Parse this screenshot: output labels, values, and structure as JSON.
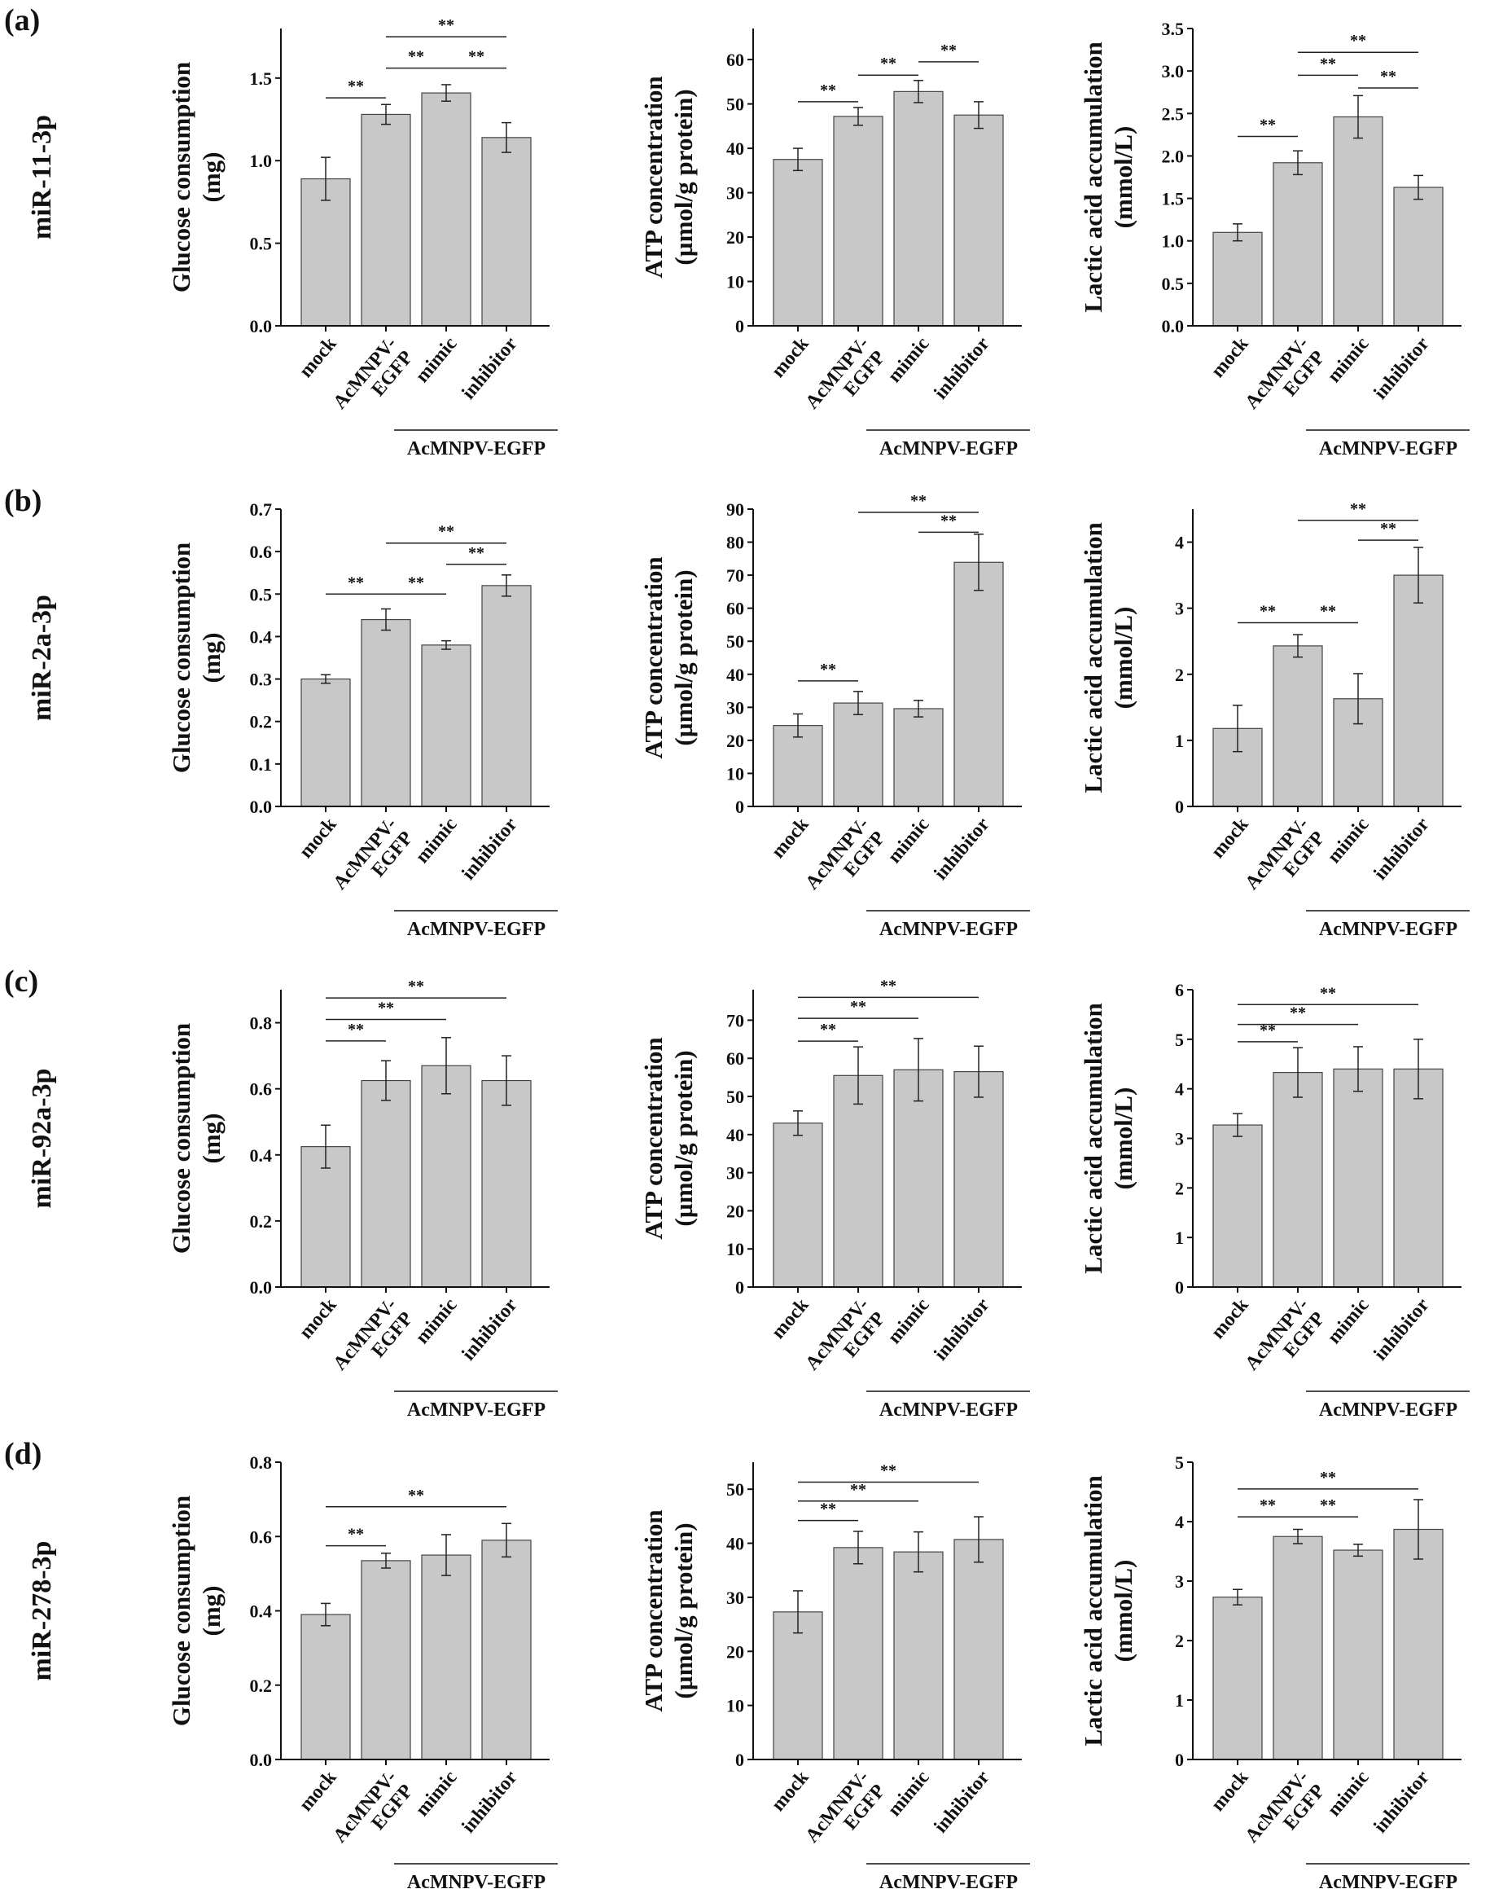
{
  "figure": {
    "group_label": "AcMNPV-EGFP",
    "colors": {
      "bar": "#c8c8c8",
      "bar_stroke": "#444444",
      "axis": "#111111"
    }
  },
  "chart_data": [
    {
      "panel": "(a)",
      "row_label": "miR-11-3p",
      "type": "bar",
      "ylabel": [
        "Glucose consumption",
        "(mg)"
      ],
      "categories": [
        "mock",
        "AcMNPV-EGFP",
        "mimic",
        "inhibitor"
      ],
      "values": [
        0.89,
        1.28,
        1.41,
        1.14
      ],
      "errors": [
        0.13,
        0.06,
        0.05,
        0.09
      ],
      "ylim": [
        0,
        1.8
      ],
      "yticks": [
        0.0,
        0.5,
        1.0,
        1.5
      ],
      "ytick_labels": [
        "0.0",
        "0.5",
        "1.0",
        "1.5"
      ],
      "significance": [
        {
          "from": 0,
          "to": 1,
          "y": 1.38,
          "label": "**"
        },
        {
          "from": 1,
          "to": 3,
          "y": 1.75,
          "label": "**"
        },
        {
          "from": 1,
          "to": 2,
          "y": 1.56,
          "label": "**"
        },
        {
          "from": 2,
          "to": 3,
          "y": 1.56,
          "label": "**"
        }
      ]
    },
    {
      "panel": "",
      "row_label": "",
      "type": "bar",
      "ylabel": [
        "ATP concentration",
        "(µmol/g protein)"
      ],
      "categories": [
        "mock",
        "AcMNPV-EGFP",
        "mimic",
        "inhibitor"
      ],
      "values": [
        37.5,
        47.2,
        52.8,
        47.5
      ],
      "errors": [
        2.5,
        2.0,
        2.5,
        3.0
      ],
      "ylim": [
        0,
        67
      ],
      "yticks": [
        0,
        10,
        20,
        30,
        40,
        50,
        60
      ],
      "ytick_labels": [
        "0",
        "10",
        "20",
        "30",
        "40",
        "50",
        "60"
      ],
      "significance": [
        {
          "from": 0,
          "to": 1,
          "y": 50.5,
          "label": "**"
        },
        {
          "from": 1,
          "to": 2,
          "y": 56.5,
          "label": "**"
        },
        {
          "from": 2,
          "to": 3,
          "y": 59.5,
          "label": "**"
        }
      ]
    },
    {
      "panel": "",
      "row_label": "",
      "type": "bar",
      "ylabel": [
        "Lactic acid accumulation",
        "(mmol/L)"
      ],
      "categories": [
        "mock",
        "AcMNPV-EGFP",
        "mimic",
        "inhibitor"
      ],
      "values": [
        1.1,
        1.92,
        2.46,
        1.63
      ],
      "errors": [
        0.1,
        0.14,
        0.25,
        0.14
      ],
      "ylim": [
        0,
        3.5
      ],
      "yticks": [
        0.0,
        0.5,
        1.0,
        1.5,
        2.0,
        2.5,
        3.0,
        3.5
      ],
      "ytick_labels": [
        "0.0",
        "0.5",
        "1.0",
        "1.5",
        "2.0",
        "2.5",
        "3.0",
        "3.5"
      ],
      "significance": [
        {
          "from": 0,
          "to": 1,
          "y": 2.23,
          "label": "**"
        },
        {
          "from": 1,
          "to": 3,
          "y": 3.22,
          "label": "**"
        },
        {
          "from": 1,
          "to": 2,
          "y": 2.95,
          "label": "**"
        },
        {
          "from": 2,
          "to": 3,
          "y": 2.8,
          "label": "**"
        }
      ]
    },
    {
      "panel": "(b)",
      "row_label": "miR-2a-3p",
      "type": "bar",
      "ylabel": [
        "Glucose consumption",
        "(mg)"
      ],
      "categories": [
        "mock",
        "AcMNPV-EGFP",
        "mimic",
        "inhibitor"
      ],
      "values": [
        0.3,
        0.44,
        0.38,
        0.52
      ],
      "errors": [
        0.01,
        0.025,
        0.01,
        0.025
      ],
      "ylim": [
        0,
        0.7
      ],
      "yticks": [
        0.0,
        0.1,
        0.2,
        0.3,
        0.4,
        0.5,
        0.6,
        0.7
      ],
      "ytick_labels": [
        "0.0",
        "0.1",
        "0.2",
        "0.3",
        "0.4",
        "0.5",
        "0.6",
        "0.7"
      ],
      "significance": [
        {
          "from": 0,
          "to": 1,
          "y": 0.5,
          "label": "**"
        },
        {
          "from": 1,
          "to": 3,
          "y": 0.62,
          "label": "**"
        },
        {
          "from": 1,
          "to": 2,
          "y": 0.5,
          "label": "**"
        },
        {
          "from": 2,
          "to": 3,
          "y": 0.57,
          "label": "**"
        }
      ]
    },
    {
      "panel": "",
      "row_label": "",
      "type": "bar",
      "ylabel": [
        "ATP concentration",
        "(µmol/g protein)"
      ],
      "categories": [
        "mock",
        "AcMNPV-EGFP",
        "mimic",
        "inhibitor"
      ],
      "values": [
        24.5,
        31.3,
        29.6,
        73.9
      ],
      "errors": [
        3.5,
        3.5,
        2.5,
        8.5
      ],
      "ylim": [
        0,
        90
      ],
      "yticks": [
        0,
        10,
        20,
        30,
        40,
        50,
        60,
        70,
        80,
        90
      ],
      "ytick_labels": [
        "0",
        "10",
        "20",
        "30",
        "40",
        "50",
        "60",
        "70",
        "80",
        "90"
      ],
      "significance": [
        {
          "from": 0,
          "to": 1,
          "y": 38,
          "label": "**"
        },
        {
          "from": 1,
          "to": 3,
          "y": 89,
          "label": "**"
        },
        {
          "from": 2,
          "to": 3,
          "y": 83,
          "label": "**"
        }
      ]
    },
    {
      "panel": "",
      "row_label": "",
      "type": "bar",
      "ylabel": [
        "Lactic acid accumulation",
        "(mmol/L)"
      ],
      "categories": [
        "mock",
        "AcMNPV-EGFP",
        "mimic",
        "inhibitor"
      ],
      "values": [
        1.18,
        2.43,
        1.63,
        3.5
      ],
      "errors": [
        0.35,
        0.17,
        0.38,
        0.42
      ],
      "ylim": [
        0,
        4.5
      ],
      "yticks": [
        0,
        1,
        2,
        3,
        4
      ],
      "ytick_labels": [
        "0",
        "1",
        "2",
        "3",
        "4"
      ],
      "significance": [
        {
          "from": 0,
          "to": 1,
          "y": 2.78,
          "label": "**"
        },
        {
          "from": 1,
          "to": 3,
          "y": 4.33,
          "label": "**"
        },
        {
          "from": 1,
          "to": 2,
          "y": 2.78,
          "label": "**"
        },
        {
          "from": 2,
          "to": 3,
          "y": 4.03,
          "label": "**"
        }
      ]
    },
    {
      "panel": "(c)",
      "row_label": "miR-92a-3p",
      "type": "bar",
      "ylabel": [
        "Glucose consumption",
        "(mg)"
      ],
      "categories": [
        "mock",
        "AcMNPV-EGFP",
        "mimic",
        "inhibitor"
      ],
      "values": [
        0.425,
        0.625,
        0.67,
        0.625
      ],
      "errors": [
        0.065,
        0.06,
        0.085,
        0.075
      ],
      "ylim": [
        0,
        0.9
      ],
      "yticks": [
        0.0,
        0.2,
        0.4,
        0.6,
        0.8
      ],
      "ytick_labels": [
        "0.0",
        "0.2",
        "0.4",
        "0.6",
        "0.8"
      ],
      "significance": [
        {
          "from": 0,
          "to": 1,
          "y": 0.745,
          "label": "**"
        },
        {
          "from": 0,
          "to": 2,
          "y": 0.81,
          "label": "**"
        },
        {
          "from": 0,
          "to": 3,
          "y": 0.875,
          "label": "**"
        }
      ]
    },
    {
      "panel": "",
      "row_label": "",
      "type": "bar",
      "ylabel": [
        "ATP concentration",
        "(µmol/g protein)"
      ],
      "categories": [
        "mock",
        "AcMNPV-EGFP",
        "mimic",
        "inhibitor"
      ],
      "values": [
        43,
        55.5,
        57,
        56.5
      ],
      "errors": [
        3.2,
        7.5,
        8.2,
        6.7
      ],
      "ylim": [
        0,
        78
      ],
      "yticks": [
        0,
        10,
        20,
        30,
        40,
        50,
        60,
        70
      ],
      "ytick_labels": [
        "0",
        "10",
        "20",
        "30",
        "40",
        "50",
        "60",
        "70"
      ],
      "significance": [
        {
          "from": 0,
          "to": 1,
          "y": 64.5,
          "label": "**"
        },
        {
          "from": 0,
          "to": 2,
          "y": 70.5,
          "label": "**"
        },
        {
          "from": 0,
          "to": 3,
          "y": 76,
          "label": "**"
        }
      ]
    },
    {
      "panel": "",
      "row_label": "",
      "type": "bar",
      "ylabel": [
        "Lactic acid accumulation",
        "(mmol/L)"
      ],
      "categories": [
        "mock",
        "AcMNPV-EGFP",
        "mimic",
        "inhibitor"
      ],
      "values": [
        3.27,
        4.33,
        4.4,
        4.4
      ],
      "errors": [
        0.23,
        0.5,
        0.45,
        0.6
      ],
      "ylim": [
        0,
        6
      ],
      "yticks": [
        0,
        1,
        2,
        3,
        4,
        5,
        6
      ],
      "ytick_labels": [
        "0",
        "1",
        "2",
        "3",
        "4",
        "5",
        "6"
      ],
      "significance": [
        {
          "from": 0,
          "to": 1,
          "y": 4.95,
          "label": "**"
        },
        {
          "from": 0,
          "to": 2,
          "y": 5.3,
          "label": "**"
        },
        {
          "from": 0,
          "to": 3,
          "y": 5.7,
          "label": "**"
        }
      ]
    },
    {
      "panel": "(d)",
      "row_label": "miR-278-3p",
      "type": "bar",
      "ylabel": [
        "Glucose consumption",
        "(mg)"
      ],
      "categories": [
        "mock",
        "AcMNPV-EGFP",
        "mimic",
        "inhibitor"
      ],
      "values": [
        0.39,
        0.535,
        0.55,
        0.59
      ],
      "errors": [
        0.03,
        0.02,
        0.055,
        0.045
      ],
      "ylim": [
        0,
        0.8
      ],
      "yticks": [
        0.0,
        0.2,
        0.4,
        0.6,
        0.8
      ],
      "ytick_labels": [
        "0.0",
        "0.2",
        "0.4",
        "0.6",
        "0.8"
      ],
      "significance": [
        {
          "from": 0,
          "to": 1,
          "y": 0.575,
          "label": "**"
        },
        {
          "from": 0,
          "to": 3,
          "y": 0.68,
          "label": "**"
        }
      ]
    },
    {
      "panel": "",
      "row_label": "",
      "type": "bar",
      "ylabel": [
        "ATP concentration",
        "(µmol/g protein)"
      ],
      "categories": [
        "mock",
        "AcMNPV-EGFP",
        "mimic",
        "inhibitor"
      ],
      "values": [
        27.3,
        39.2,
        38.4,
        40.7
      ],
      "errors": [
        3.9,
        3,
        3.7,
        4.2
      ],
      "ylim": [
        0,
        55
      ],
      "yticks": [
        0,
        10,
        20,
        30,
        40,
        50
      ],
      "ytick_labels": [
        "0",
        "10",
        "20",
        "30",
        "40",
        "50"
      ],
      "significance": [
        {
          "from": 0,
          "to": 1,
          "y": 44.2,
          "label": "**"
        },
        {
          "from": 0,
          "to": 2,
          "y": 47.8,
          "label": "**"
        },
        {
          "from": 0,
          "to": 3,
          "y": 51.3,
          "label": "**"
        }
      ]
    },
    {
      "panel": "",
      "row_label": "",
      "type": "bar",
      "ylabel": [
        "Lactic acid accumulation",
        "(mmol/L)"
      ],
      "categories": [
        "mock",
        "AcMNPV-EGFP",
        "mimic",
        "inhibitor"
      ],
      "values": [
        2.73,
        3.75,
        3.52,
        3.87
      ],
      "errors": [
        0.13,
        0.12,
        0.1,
        0.5
      ],
      "ylim": [
        0,
        5
      ],
      "yticks": [
        0,
        1,
        2,
        3,
        4,
        5
      ],
      "ytick_labels": [
        "0",
        "1",
        "2",
        "3",
        "4",
        "5"
      ],
      "significance": [
        {
          "from": 0,
          "to": 1,
          "y": 4.08,
          "label": "**"
        },
        {
          "from": 1,
          "to": 2,
          "y": 4.08,
          "label": "**"
        },
        {
          "from": 0,
          "to": 3,
          "y": 4.55,
          "label": "**"
        }
      ]
    }
  ]
}
